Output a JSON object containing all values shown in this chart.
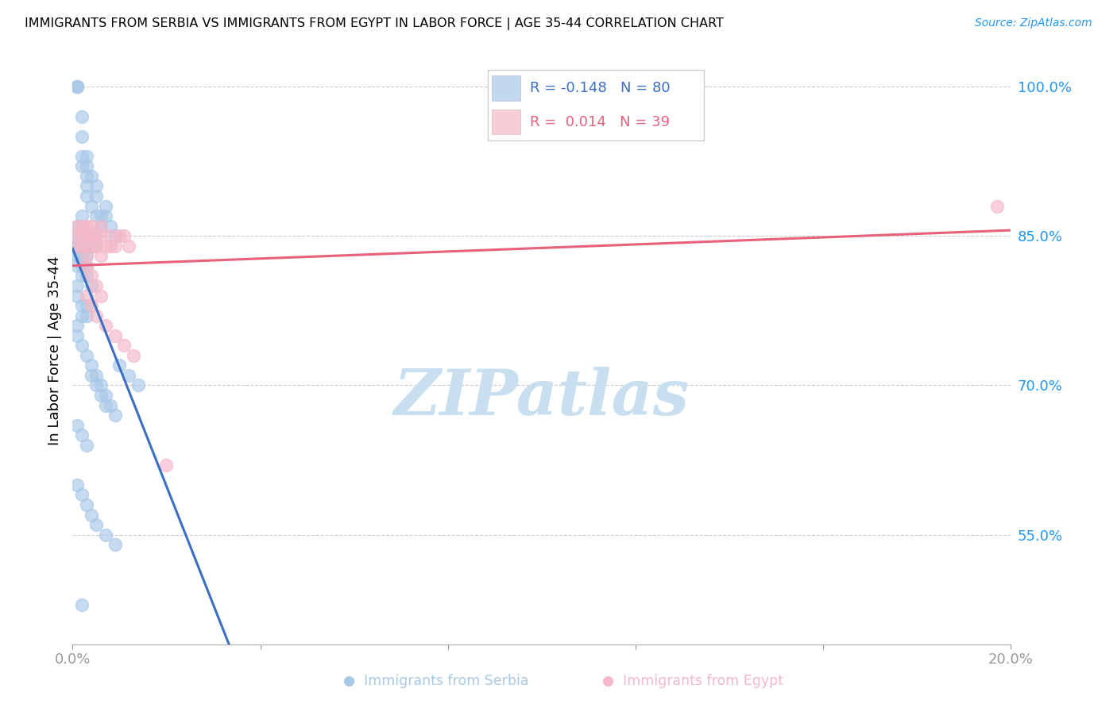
{
  "title": "IMMIGRANTS FROM SERBIA VS IMMIGRANTS FROM EGYPT IN LABOR FORCE | AGE 35-44 CORRELATION CHART",
  "source": "Source: ZipAtlas.com",
  "ylabel": "In Labor Force | Age 35-44",
  "right_yticks": [
    55.0,
    70.0,
    85.0,
    100.0
  ],
  "serbia_R": -0.148,
  "serbia_N": 80,
  "egypt_R": 0.014,
  "egypt_N": 39,
  "serbia_color": "#a8c8e8",
  "egypt_color": "#f4b8c8",
  "serbia_line_color": "#3a6fc4",
  "egypt_line_color": "#e8607a",
  "watermark_text": "ZIPatlas",
  "watermark_color": "#c8dff0",
  "serbia_x": [
    0.001,
    0.001,
    0.001,
    0.002,
    0.002,
    0.002,
    0.002,
    0.003,
    0.003,
    0.003,
    0.003,
    0.003,
    0.004,
    0.004,
    0.005,
    0.005,
    0.005,
    0.006,
    0.006,
    0.007,
    0.007,
    0.008,
    0.009,
    0.001,
    0.001,
    0.001,
    0.001,
    0.001,
    0.002,
    0.002,
    0.002,
    0.003,
    0.003,
    0.004,
    0.004,
    0.005,
    0.001,
    0.001,
    0.002,
    0.002,
    0.002,
    0.003,
    0.003,
    0.004,
    0.001,
    0.001,
    0.002,
    0.002,
    0.003,
    0.003,
    0.001,
    0.001,
    0.002,
    0.003,
    0.004,
    0.005,
    0.006,
    0.007,
    0.008,
    0.009,
    0.001,
    0.002,
    0.003,
    0.004,
    0.005,
    0.006,
    0.007,
    0.01,
    0.012,
    0.014,
    0.001,
    0.002,
    0.003,
    0.004,
    0.005,
    0.007,
    0.009,
    0.004,
    0.003,
    0.002
  ],
  "serbia_y": [
    1.0,
    1.0,
    1.0,
    0.97,
    0.95,
    0.93,
    0.92,
    0.93,
    0.92,
    0.91,
    0.9,
    0.89,
    0.91,
    0.88,
    0.9,
    0.89,
    0.87,
    0.87,
    0.86,
    0.88,
    0.87,
    0.86,
    0.85,
    0.86,
    0.85,
    0.84,
    0.83,
    0.82,
    0.87,
    0.86,
    0.85,
    0.84,
    0.83,
    0.85,
    0.84,
    0.85,
    0.84,
    0.83,
    0.83,
    0.82,
    0.81,
    0.82,
    0.81,
    0.8,
    0.8,
    0.79,
    0.78,
    0.77,
    0.78,
    0.77,
    0.76,
    0.75,
    0.74,
    0.73,
    0.72,
    0.71,
    0.7,
    0.69,
    0.68,
    0.67,
    0.66,
    0.65,
    0.64,
    0.71,
    0.7,
    0.69,
    0.68,
    0.72,
    0.71,
    0.7,
    0.6,
    0.59,
    0.58,
    0.57,
    0.56,
    0.55,
    0.54,
    0.85,
    0.85,
    0.48
  ],
  "egypt_x": [
    0.001,
    0.001,
    0.002,
    0.002,
    0.003,
    0.003,
    0.003,
    0.004,
    0.004,
    0.005,
    0.005,
    0.006,
    0.006,
    0.007,
    0.008,
    0.008,
    0.009,
    0.01,
    0.011,
    0.012,
    0.001,
    0.002,
    0.003,
    0.004,
    0.005,
    0.006,
    0.003,
    0.004,
    0.005,
    0.006,
    0.003,
    0.004,
    0.005,
    0.007,
    0.009,
    0.011,
    0.013,
    0.02,
    0.197
  ],
  "egypt_y": [
    0.86,
    0.85,
    0.86,
    0.85,
    0.86,
    0.85,
    0.84,
    0.86,
    0.85,
    0.85,
    0.84,
    0.86,
    0.85,
    0.84,
    0.85,
    0.84,
    0.84,
    0.85,
    0.85,
    0.84,
    0.84,
    0.84,
    0.83,
    0.85,
    0.84,
    0.83,
    0.82,
    0.81,
    0.8,
    0.79,
    0.79,
    0.78,
    0.77,
    0.76,
    0.75,
    0.74,
    0.73,
    0.62,
    0.88
  ],
  "xlim": [
    0.0,
    0.2
  ],
  "ylim": [
    0.44,
    1.03
  ],
  "serbia_line_solid_end": 0.055,
  "serbia_line_dash_end": 0.2
}
